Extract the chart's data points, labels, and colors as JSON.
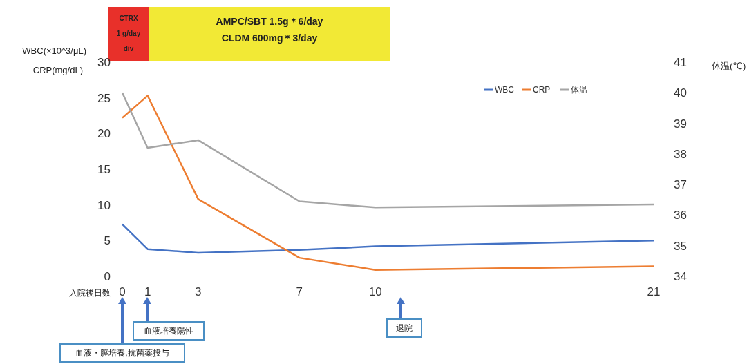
{
  "chart_data": {
    "type": "line",
    "xlabel": "入院後日数",
    "ylabel": "WBC(×10^3/μL)\nCRP(mg/dL)",
    "y2label": "体温(℃)",
    "x": [
      0,
      1,
      3,
      7,
      10,
      21
    ],
    "xlim": [
      0,
      21
    ],
    "xticks": [
      0,
      1,
      3,
      7,
      10,
      21
    ],
    "ylim": [
      0,
      30
    ],
    "yticks": [
      0,
      5,
      10,
      15,
      20,
      25,
      30
    ],
    "y2lim": [
      34,
      41
    ],
    "y2ticks": [
      34,
      35,
      36,
      37,
      38,
      39,
      40,
      41
    ],
    "series": [
      {
        "name": "WBC",
        "color": "#4472c4",
        "values": [
          7.3,
          3.8,
          3.3,
          3.7,
          4.2,
          5.0
        ]
      },
      {
        "name": "CRP",
        "color": "#ed7d31",
        "values": [
          22.2,
          25.3,
          10.8,
          2.6,
          0.9,
          1.4
        ]
      },
      {
        "name": "体温",
        "color": "#a5a5a5",
        "axis": "y2",
        "values": [
          40.0,
          38.2,
          38.45,
          36.45,
          36.25,
          36.35
        ]
      }
    ],
    "annotations": [
      "CTRX\n1 g/day\ndiv",
      "AMPC/SBT 1.5g＊6/day\nCLDM 600mg＊3/day",
      "血液・膣培養,抗菌薬投与",
      "血液培養陽性",
      "退院"
    ],
    "legend": "top right",
    "grid": false,
    "marker": "none",
    "line_style": "solid"
  }
}
